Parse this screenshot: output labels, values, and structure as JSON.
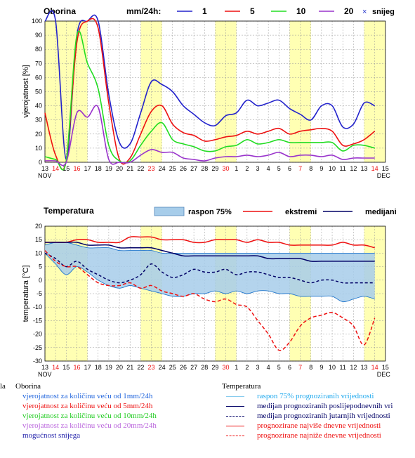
{
  "chart_data": [
    {
      "type": "line",
      "title": "Oborina",
      "legend_title": "mm/24h:",
      "ylabel": "vjerojatnost [%]",
      "ylim": [
        0,
        100
      ],
      "yticks": [
        0,
        10,
        20,
        30,
        40,
        50,
        60,
        70,
        80,
        90,
        100
      ],
      "x_labels": [
        "13",
        "14",
        "15",
        "16",
        "17",
        "18",
        "19",
        "20",
        "21",
        "22",
        "23",
        "24",
        "25",
        "26",
        "27",
        "28",
        "29",
        "30",
        "1",
        "2",
        "3",
        "4",
        "5",
        "6",
        "7",
        "8",
        "9",
        "10",
        "11",
        "12",
        "13",
        "14",
        "15"
      ],
      "x_month_labels": [
        "NOV",
        "DEC"
      ],
      "highlight_days": [
        "16",
        "23",
        "30",
        "7",
        "14"
      ],
      "series": [
        {
          "name": "1",
          "color": "#2222cc",
          "values": [
            100,
            100,
            2,
            90,
            100,
            100,
            48,
            14,
            13,
            35,
            57,
            55,
            50,
            40,
            34,
            28,
            26,
            33,
            35,
            44,
            40,
            42,
            44,
            38,
            34,
            30,
            40,
            40,
            25,
            27,
            42,
            40
          ]
        },
        {
          "name": "5",
          "color": "#ee1111",
          "values": [
            35,
            5,
            1,
            85,
            100,
            95,
            42,
            2,
            3,
            20,
            36,
            40,
            27,
            21,
            19,
            15,
            16,
            18,
            19,
            22,
            20,
            22,
            24,
            20,
            22,
            23,
            24,
            22,
            12,
            13,
            16,
            22
          ]
        },
        {
          "name": "10",
          "color": "#22dd22",
          "values": [
            4,
            2,
            1,
            90,
            70,
            52,
            12,
            1,
            1,
            12,
            22,
            28,
            16,
            13,
            11,
            8,
            8,
            11,
            12,
            16,
            13,
            14,
            16,
            14,
            14,
            14,
            14,
            14,
            8,
            12,
            12,
            10
          ]
        },
        {
          "name": "20",
          "color": "#9933cc",
          "values": [
            1,
            1,
            0,
            35,
            32,
            39,
            2,
            0,
            0,
            5,
            9,
            7,
            7,
            3,
            2,
            1,
            3,
            4,
            4,
            5,
            4,
            5,
            7,
            4,
            5,
            5,
            4,
            5,
            2,
            3,
            3,
            3
          ]
        }
      ],
      "snow_label": "snijeg"
    },
    {
      "type": "area",
      "title": "Temperatura",
      "ylabel": "temperatura [°C]",
      "ylim": [
        -30,
        20
      ],
      "yticks": [
        20,
        15,
        10,
        5,
        0,
        -5,
        -10,
        -15,
        -20,
        -25,
        -30
      ],
      "x_labels": [
        "13",
        "14",
        "15",
        "16",
        "17",
        "18",
        "19",
        "20",
        "21",
        "22",
        "23",
        "24",
        "25",
        "26",
        "27",
        "28",
        "29",
        "30",
        "1",
        "2",
        "3",
        "4",
        "5",
        "6",
        "7",
        "8",
        "9",
        "10",
        "11",
        "12",
        "13",
        "14",
        "15"
      ],
      "x_month_labels": [
        "NOV",
        "DEC"
      ],
      "legend": {
        "range_label": "raspon 75%",
        "extreme_label": "ekstremi",
        "median_label": "medijani"
      },
      "range_upper": [
        13,
        14,
        14,
        13,
        12,
        12,
        12,
        11,
        11,
        11,
        11,
        10,
        10,
        10,
        10,
        10,
        10,
        10,
        10,
        10,
        10,
        10,
        10,
        10,
        10,
        10,
        10,
        10,
        10,
        10,
        10,
        10
      ],
      "range_lower": [
        10,
        6,
        2,
        5,
        3,
        0,
        -2,
        -3,
        -2,
        -3,
        -4,
        -5,
        -6,
        -6,
        -5,
        -5,
        -4,
        -5,
        -4,
        -5,
        -4,
        -4,
        -5,
        -5,
        -6,
        -6,
        -6,
        -6,
        -8,
        -7,
        -6,
        -7
      ],
      "median_afternoon": [
        14,
        14,
        14,
        14,
        13,
        13,
        13,
        12,
        12,
        12,
        12,
        11,
        10,
        9,
        9,
        9,
        9,
        9,
        9,
        9,
        9,
        8,
        8,
        8,
        8,
        7,
        7,
        7,
        7,
        7,
        7,
        7
      ],
      "median_morning": [
        10,
        8,
        5,
        7,
        4,
        2,
        0,
        -1,
        0,
        2,
        6,
        3,
        1,
        2,
        4,
        3,
        3,
        4,
        2,
        3,
        3,
        2,
        1,
        1,
        0,
        -1,
        0,
        0,
        -1,
        -1,
        -1,
        -1
      ],
      "max_extreme": [
        14,
        14,
        14,
        15,
        15,
        14,
        14,
        14,
        16,
        16,
        16,
        15,
        15,
        15,
        14,
        14,
        15,
        15,
        15,
        14,
        15,
        14,
        14,
        13,
        13,
        13,
        13,
        13,
        14,
        13,
        13,
        12
      ],
      "min_extreme": [
        11,
        7,
        5,
        5,
        2,
        -1,
        -2,
        -2,
        -1,
        -3,
        -2,
        -4,
        -5,
        -6,
        -5,
        -7,
        -8,
        -7,
        -9,
        -10,
        -15,
        -20,
        -26,
        -23,
        -17,
        -14,
        -13,
        -12,
        -14,
        -17,
        -24,
        -14
      ]
    }
  ],
  "legend_footer": {
    "left_cut": "la",
    "oborina_title": "Oborina",
    "oborina_items": [
      {
        "text": "vjerojatnost za količinu veću od 1mm/24h",
        "color": "#2266dd"
      },
      {
        "text": "vjerojatnost za količinu veću od 5mm/24h",
        "color": "#ee1111"
      },
      {
        "text": "vjerojatnost za količinu veću od 10mm/24h",
        "color": "#22cc22"
      },
      {
        "text": "vjerojatnost za količinu veću od 20mm/24h",
        "color": "#bb66dd"
      },
      {
        "text": "mogućnost snijega",
        "color": "#2222aa"
      }
    ],
    "temp_title": "Temperatura",
    "temp_items": [
      {
        "text": "raspon 75%  prognoziranih vrijednosti",
        "color": "#22aaee"
      },
      {
        "text": "medijan prognoziranih poslijepodnevnih vri",
        "color": "#000066"
      },
      {
        "text": "medijan prognoziranih jutarnjih vrijednosti",
        "color": "#000066"
      },
      {
        "text": "prognozirane najviše dnevne vrijednosti",
        "color": "#ee1111"
      },
      {
        "text": "prognozirane najniže dnevne vrijednosti",
        "color": "#ee1111"
      }
    ]
  }
}
